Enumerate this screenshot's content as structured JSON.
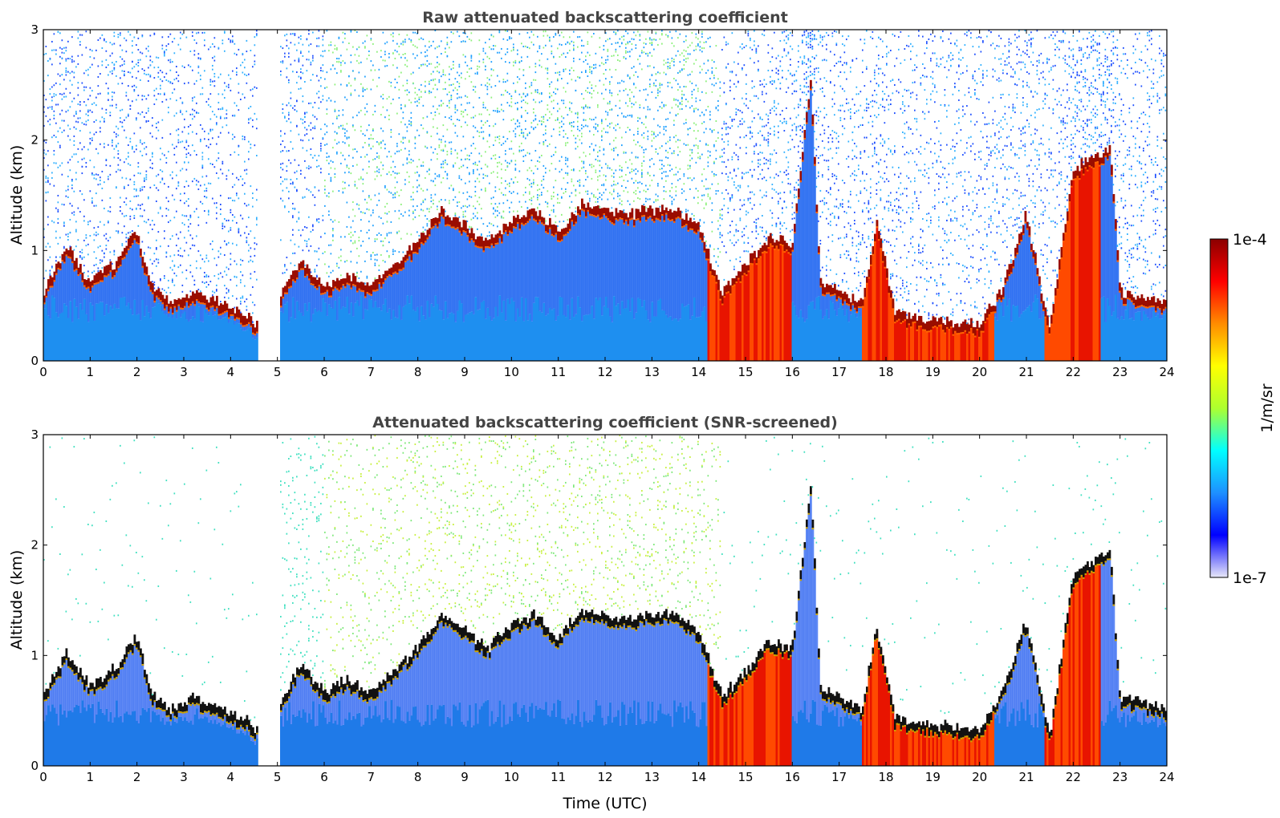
{
  "chart_data": [
    {
      "type": "heatmap",
      "title": "Raw attenuated backscattering coefficient",
      "xlabel": "",
      "ylabel": "Altitude (km)",
      "xlim": [
        0,
        24
      ],
      "ylim": [
        0,
        3
      ],
      "xticks": [
        "0",
        "1",
        "2",
        "3",
        "4",
        "5",
        "6",
        "7",
        "8",
        "9",
        "10",
        "11",
        "12",
        "13",
        "14",
        "15",
        "16",
        "17",
        "18",
        "19",
        "20",
        "21",
        "22",
        "23",
        "24"
      ],
      "yticks": [
        "0",
        "1",
        "2",
        "3"
      ],
      "data_gap": [
        4.6,
        5.05
      ],
      "layer_height_km": [
        [
          0.0,
          0.55
        ],
        [
          0.5,
          0.95
        ],
        [
          1.0,
          0.65
        ],
        [
          1.5,
          0.8
        ],
        [
          2.0,
          1.1
        ],
        [
          2.3,
          0.6
        ],
        [
          2.7,
          0.45
        ],
        [
          3.2,
          0.55
        ],
        [
          3.8,
          0.45
        ],
        [
          4.3,
          0.35
        ],
        [
          4.6,
          0.25
        ],
        [
          5.05,
          0.5
        ],
        [
          5.5,
          0.85
        ],
        [
          6.0,
          0.6
        ],
        [
          6.5,
          0.7
        ],
        [
          7.0,
          0.6
        ],
        [
          7.5,
          0.8
        ],
        [
          8.0,
          1.0
        ],
        [
          8.5,
          1.3
        ],
        [
          9.0,
          1.15
        ],
        [
          9.5,
          1.0
        ],
        [
          10.0,
          1.2
        ],
        [
          10.5,
          1.3
        ],
        [
          11.0,
          1.1
        ],
        [
          11.5,
          1.35
        ],
        [
          12.0,
          1.3
        ],
        [
          12.5,
          1.25
        ],
        [
          13.0,
          1.3
        ],
        [
          13.5,
          1.3
        ],
        [
          14.0,
          1.15
        ],
        [
          14.5,
          0.55
        ],
        [
          15.0,
          0.8
        ],
        [
          15.5,
          1.05
        ],
        [
          16.0,
          1.0
        ],
        [
          16.4,
          2.5
        ],
        [
          16.6,
          0.65
        ],
        [
          17.0,
          0.55
        ],
        [
          17.5,
          0.45
        ],
        [
          17.8,
          1.2
        ],
        [
          18.2,
          0.35
        ],
        [
          19.0,
          0.3
        ],
        [
          20.0,
          0.25
        ],
        [
          20.5,
          0.6
        ],
        [
          21.0,
          1.25
        ],
        [
          21.5,
          0.2
        ],
        [
          22.0,
          1.65
        ],
        [
          22.5,
          1.8
        ],
        [
          22.8,
          1.85
        ],
        [
          23.0,
          0.55
        ],
        [
          24.0,
          0.45
        ]
      ],
      "strong_signal_periods": [
        [
          14.2,
          16.0
        ],
        [
          17.5,
          20.3
        ],
        [
          21.4,
          22.6
        ]
      ]
    },
    {
      "type": "heatmap",
      "title": "Attenuated backscattering coefficient (SNR-screened)",
      "xlabel": "Time (UTC)",
      "ylabel": "Altitude (km)",
      "xlim": [
        0,
        24
      ],
      "ylim": [
        0,
        3
      ],
      "xticks": [
        "0",
        "1",
        "2",
        "3",
        "4",
        "5",
        "6",
        "7",
        "8",
        "9",
        "10",
        "11",
        "12",
        "13",
        "14",
        "15",
        "16",
        "17",
        "18",
        "19",
        "20",
        "21",
        "22",
        "23",
        "24"
      ],
      "yticks": [
        "0",
        "1",
        "2",
        "3"
      ],
      "data_gap": [
        4.6,
        5.05
      ]
    }
  ],
  "colorbar": {
    "label": "1/m/sr",
    "max_label": "1e-4",
    "min_label": "1e-7",
    "scale": "log",
    "range": [
      1e-07,
      0.0001
    ],
    "colormap": [
      "#e8e8f8",
      "#0000ff",
      "#1e90ff",
      "#00ffff",
      "#adff2f",
      "#ffff00",
      "#ff8c00",
      "#ff0000",
      "#8b0000"
    ]
  }
}
